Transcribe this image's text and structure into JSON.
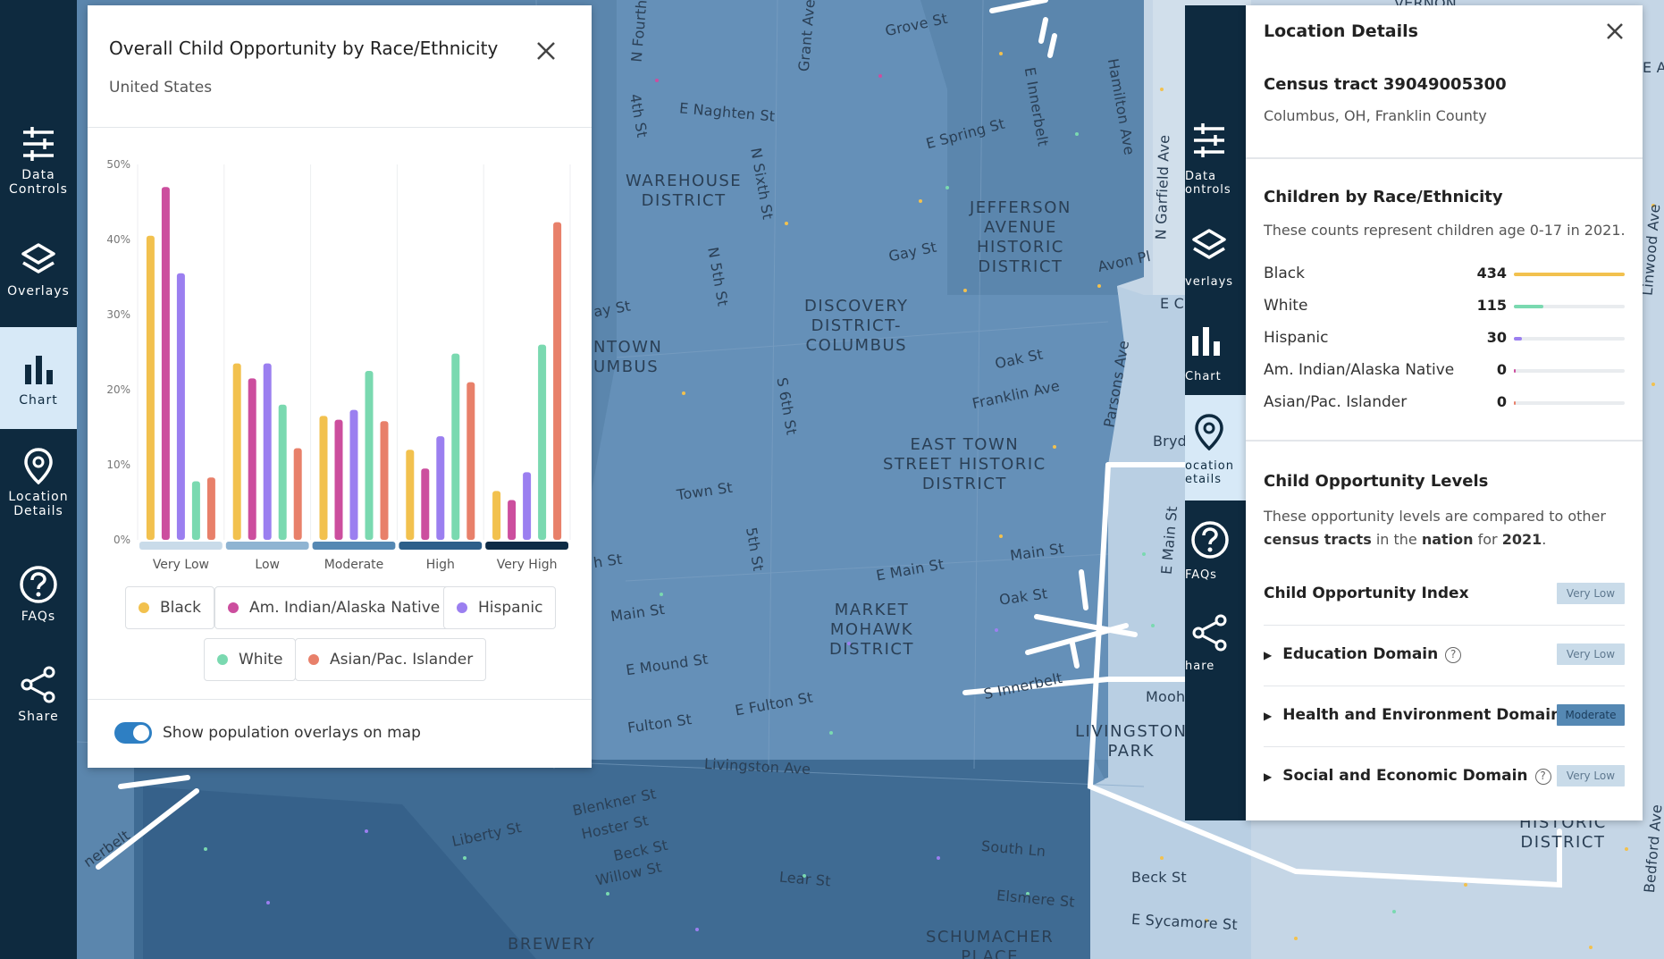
{
  "left_nav": {
    "items": [
      {
        "label": "Data\nControls",
        "icon": "sliders-icon"
      },
      {
        "label": "Overlays",
        "icon": "layers-icon"
      },
      {
        "label": "Chart",
        "icon": "bar-chart-icon",
        "active": true
      },
      {
        "label": "Location\nDetails",
        "icon": "map-pin-icon"
      },
      {
        "label": "FAQs",
        "icon": "help-circle-icon"
      },
      {
        "label": "Share",
        "icon": "share-icon"
      }
    ]
  },
  "chart_panel": {
    "title": "Overall Child Opportunity by Race/Ethnicity",
    "subtitle": "United States",
    "toggle_label": "Show population overlays on map",
    "toggle_on": true
  },
  "chart_data": {
    "type": "bar",
    "categories": [
      "Very Low",
      "Low",
      "Moderate",
      "High",
      "Very High"
    ],
    "category_colors": [
      "#c9dbe9",
      "#8fb4d2",
      "#5588b3",
      "#2d5f8a",
      "#0d2b45"
    ],
    "ylim": [
      0,
      50
    ],
    "yticks": [
      "0%",
      "10%",
      "20%",
      "30%",
      "40%",
      "50%"
    ],
    "series": [
      {
        "name": "Black",
        "color": "#f2c14e",
        "values": [
          40.5,
          23.5,
          16.5,
          12,
          6.5
        ]
      },
      {
        "name": "Am. Indian/Alaska Native",
        "color": "#cc4e9e",
        "values": [
          47,
          21.5,
          16,
          9.5,
          5.3
        ]
      },
      {
        "name": "Hispanic",
        "color": "#9b7ff0",
        "values": [
          35.5,
          23.5,
          17.3,
          13.8,
          9
        ]
      },
      {
        "name": "White",
        "color": "#7ad9b0",
        "values": [
          7.8,
          18,
          22.5,
          24.8,
          26
        ]
      },
      {
        "name": "Asian/Pac. Islander",
        "color": "#e8806a",
        "values": [
          8.3,
          12.2,
          15.8,
          21,
          42.3
        ]
      }
    ],
    "grid": true
  },
  "right_nav": {
    "items": [
      {
        "label": "Data\nontrols",
        "icon": "sliders-icon"
      },
      {
        "label": "verlays",
        "icon": "layers-icon"
      },
      {
        "label": "Chart",
        "icon": "bar-chart-icon"
      },
      {
        "label": "ocation\netails",
        "icon": "map-pin-icon",
        "active": true
      },
      {
        "label": "FAQs",
        "icon": "help-circle-icon"
      },
      {
        "label": "hare",
        "icon": "share-icon"
      }
    ]
  },
  "location_panel": {
    "title": "Location Details",
    "tract": "Census tract 39049005300",
    "place": "Columbus, OH, Franklin County",
    "children_heading": "Children by Race/Ethnicity",
    "children_note": "These counts represent children age 0-17 in 2021.",
    "races": [
      {
        "label": "Black",
        "value": "434",
        "color": "#f2c14e",
        "fraction": 1.0
      },
      {
        "label": "White",
        "value": "115",
        "color": "#7ad9b0",
        "fraction": 0.265
      },
      {
        "label": "Hispanic",
        "value": "30",
        "color": "#9b7ff0",
        "fraction": 0.069
      },
      {
        "label": "Am. Indian/Alaska Native",
        "value": "0",
        "color": "#cc4e9e",
        "fraction": 0.0
      },
      {
        "label": "Asian/Pac. Islander",
        "value": "0",
        "color": "#e8806a",
        "fraction": 0.0
      }
    ],
    "coi_heading": "Child Opportunity Levels",
    "coi_note_1": "These opportunity levels are compared to other",
    "coi_note_2a": "census tracts",
    "coi_note_2b": " in the ",
    "coi_note_2c": "nation",
    "coi_note_2d": " for ",
    "coi_note_2e": "2021",
    "coi_note_2f": ".",
    "coi_rows": [
      {
        "label": "Child Opportunity Index",
        "badge": "Very Low",
        "expandable": false,
        "badge_bg": "#c9dbe9",
        "badge_fg": "#5f7990"
      },
      {
        "label": "Education Domain",
        "badge": "Very Low",
        "expandable": true,
        "badge_bg": "#c9dbe9",
        "badge_fg": "#5f7990"
      },
      {
        "label": "Health and Environment Domain",
        "badge": "Moderate",
        "expandable": true,
        "badge_bg": "#5588b3",
        "badge_fg": "#1c3d5c"
      },
      {
        "label": "Social and Economic Domain",
        "badge": "Very Low",
        "expandable": true,
        "badge_bg": "#c9dbe9",
        "badge_fg": "#5f7990"
      }
    ]
  },
  "map": {
    "streets": [
      "Grove St",
      "E Naghten St",
      "E Spring St",
      "WAREHOUSE\nDISTRICT",
      "JEFFERSON\nAVENUE\nHISTORIC\nDISTRICT",
      "Gay St",
      "Avon Pl",
      "DISCOVERY\nDISTRICT-\nCOLUMBUS",
      "Oak St",
      "Franklin Ave",
      "EAST TOWN\nSTREET HISTORIC\nDISTRICT",
      "Town St",
      "E Main St",
      "Main St",
      "MARKET\nMOHAWK\nDISTRICT",
      "E Mound St",
      "E Fulton St",
      "Fulton St",
      "S Innerbelt",
      "LIVINGSTON\nPARK",
      "Livingston Ave",
      "Liberty St",
      "Blenkner St",
      "Hoster St",
      "Beck St",
      "Willow St",
      "Lear St",
      "South Ln",
      "Elsmere St",
      "BREWERY",
      "SCHUMACHER\nPLACE",
      "Beck St",
      "E Sycamore St",
      "HISTORIC\nDISTRICT",
      "Parsons Ave",
      "E Innerbelt",
      "Hamilton Ave",
      "N Garfield Ave",
      "Oak St",
      "Main St",
      "4th St",
      "5th St",
      "N Fourth",
      "Grant Ave",
      "N 5th St",
      "S 6th St",
      "E Main St",
      "Mooh",
      "Bryd",
      "nerbelt",
      "NTOWN\nUMBUS",
      "ay St",
      "h St",
      "N Sixth St",
      "E Ci",
      "E Ar",
      "VERNON",
      "Bedford Ave",
      "Linwood Ave"
    ]
  }
}
